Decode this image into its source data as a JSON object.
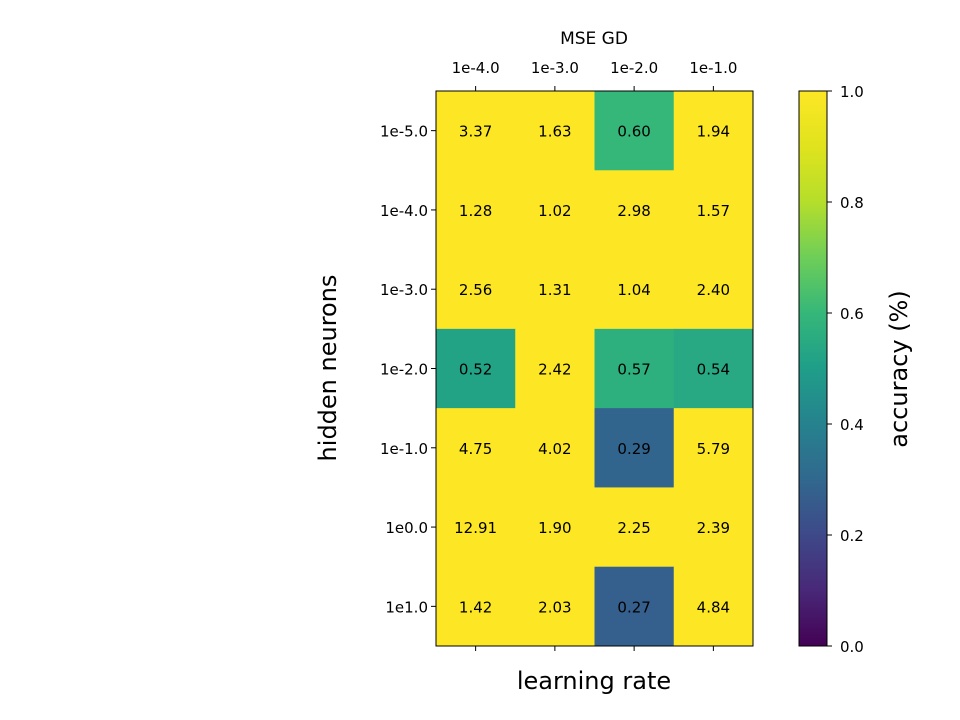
{
  "chart_data": {
    "type": "heatmap",
    "title": "MSE GD",
    "xlabel": "learning rate",
    "ylabel": "hidden neurons",
    "colorbar_label": "accuracy (%)",
    "colormap": "viridis",
    "x_ticks": [
      "1e-4.0",
      "1e-3.0",
      "1e-2.0",
      "1e-1.0"
    ],
    "y_ticks": [
      "1e-5.0",
      "1e-4.0",
      "1e-3.0",
      "1e-2.0",
      "1e-1.0",
      "1e0.0",
      "1e1.0"
    ],
    "colorbar_range": [
      0.0,
      1.0
    ],
    "colorbar_ticks": [
      "0.0",
      "0.2",
      "0.4",
      "0.6",
      "0.8",
      "1.0"
    ],
    "annotations": [
      [
        "3.37",
        "1.63",
        "0.60",
        "1.94"
      ],
      [
        "1.28",
        "1.02",
        "2.98",
        "1.57"
      ],
      [
        "2.56",
        "1.31",
        "1.04",
        "2.40"
      ],
      [
        "0.52",
        "2.42",
        "0.57",
        "0.54"
      ],
      [
        "4.75",
        "4.02",
        "0.29",
        "5.79"
      ],
      [
        "12.91",
        "1.90",
        "2.25",
        "2.39"
      ],
      [
        "1.42",
        "2.03",
        "0.27",
        "4.84"
      ]
    ],
    "color_values": [
      [
        1.0,
        1.0,
        0.6,
        1.0
      ],
      [
        1.0,
        1.0,
        1.0,
        1.0
      ],
      [
        1.0,
        1.0,
        1.0,
        1.0
      ],
      [
        0.52,
        1.0,
        0.57,
        0.54
      ],
      [
        1.0,
        1.0,
        0.29,
        1.0
      ],
      [
        1.0,
        1.0,
        1.0,
        1.0
      ],
      [
        1.0,
        1.0,
        0.27,
        1.0
      ]
    ]
  }
}
